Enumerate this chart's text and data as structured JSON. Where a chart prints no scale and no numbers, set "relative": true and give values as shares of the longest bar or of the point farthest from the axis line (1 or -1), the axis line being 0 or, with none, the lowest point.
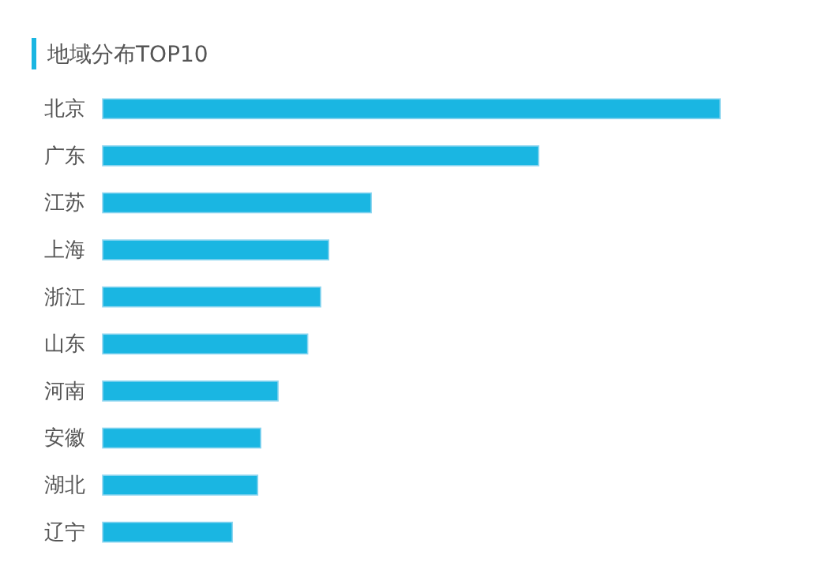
{
  "chart_data": {
    "type": "bar",
    "orientation": "horizontal",
    "relative": true,
    "title": "地域分布TOP10",
    "categories": [
      "北京",
      "广东",
      "江苏",
      "上海",
      "浙江",
      "山东",
      "河南",
      "安徽",
      "湖北",
      "辽宁"
    ],
    "values": [
      1,
      0.706,
      0.435,
      0.366,
      0.353,
      0.332,
      0.284,
      0.256,
      0.251,
      0.21
    ],
    "color": "#1ab6e2"
  }
}
